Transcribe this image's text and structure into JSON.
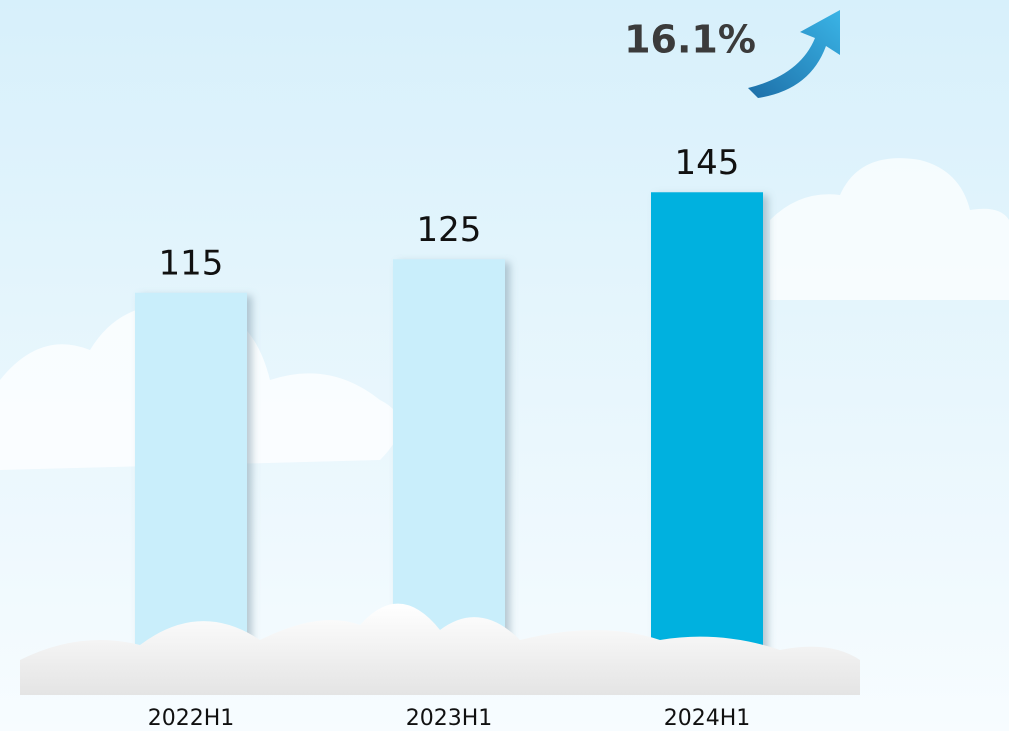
{
  "chart_data": {
    "type": "bar",
    "categories": [
      "2022H1",
      "2023H1",
      "2024H1"
    ],
    "values": [
      115,
      125,
      145
    ],
    "colors": [
      "#c9eefb",
      "#c9eefb",
      "#00b1df"
    ],
    "ylim": [
      0,
      200
    ],
    "annotation": "16.1%"
  }
}
